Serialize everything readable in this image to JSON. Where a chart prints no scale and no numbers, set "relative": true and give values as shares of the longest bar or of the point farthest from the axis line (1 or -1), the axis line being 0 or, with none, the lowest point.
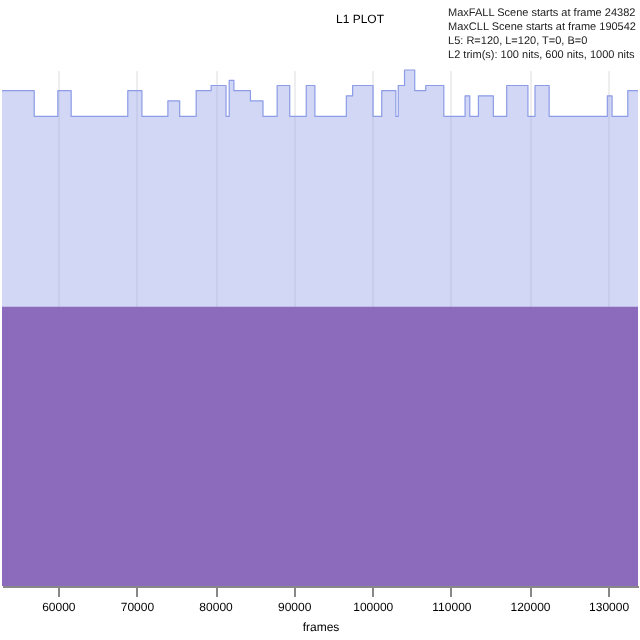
{
  "chart_data": {
    "type": "area",
    "title": "L1 PLOT",
    "xlabel": "frames",
    "relative": true,
    "grid": "x",
    "annotations": [
      "MaxFALL Scene starts at frame 24382",
      "MaxCLL Scene starts at frame 190542",
      "L5: R=120, L=120, T=0, B=0",
      "L2 trim(s): 100 nits, 600 nits, 1000 nits"
    ],
    "xlim": [
      52900,
      133800
    ],
    "xticks": [
      60000,
      70000,
      80000,
      90000,
      100000,
      110000,
      120000,
      130000
    ],
    "series": [
      {
        "color": "#8c9ce6",
        "x": [
          52900,
          57000,
          57000,
          60000,
          60000,
          61700,
          61700,
          68900,
          68900,
          70700,
          70700,
          74000,
          74000,
          75500,
          75500,
          77600,
          77600,
          79500,
          79500,
          81400,
          81400,
          81800,
          81800,
          82400,
          82400,
          84500,
          84500,
          86100,
          86100,
          87900,
          87900,
          89500,
          89500,
          91600,
          91600,
          92700,
          92700,
          96700,
          96700,
          97500,
          97500,
          100100,
          100100,
          101200,
          101200,
          103000,
          103000,
          103300,
          103300,
          104100,
          104100,
          105400,
          105400,
          106800,
          106800,
          109100,
          109100,
          111800,
          111800,
          112400,
          112400,
          113500,
          113500,
          115400,
          115400,
          117100,
          117100,
          119800,
          119800,
          120700,
          120700,
          122500,
          122500,
          129900,
          129900,
          130500,
          130500,
          132500,
          132500,
          133800
        ],
        "values": [
          0.96,
          0.96,
          0.91,
          0.91,
          0.96,
          0.96,
          0.91,
          0.91,
          0.96,
          0.96,
          0.91,
          0.91,
          0.94,
          0.94,
          0.91,
          0.91,
          0.96,
          0.96,
          0.97,
          0.97,
          0.91,
          0.91,
          0.98,
          0.98,
          0.96,
          0.96,
          0.94,
          0.94,
          0.91,
          0.91,
          0.97,
          0.97,
          0.91,
          0.91,
          0.97,
          0.97,
          0.91,
          0.91,
          0.95,
          0.95,
          0.97,
          0.97,
          0.91,
          0.91,
          0.96,
          0.96,
          0.91,
          0.91,
          0.97,
          0.97,
          1,
          1,
          0.96,
          0.96,
          0.97,
          0.97,
          0.91,
          0.91,
          0.95,
          0.95,
          0.91,
          0.91,
          0.95,
          0.95,
          0.91,
          0.91,
          0.97,
          0.97,
          0.91,
          0.91,
          0.97,
          0.97,
          0.91,
          0.91,
          0.95,
          0.95,
          0.91,
          0.91,
          0.96,
          0.96
        ]
      },
      {
        "color": "#8c6bbd",
        "x": [
          52900,
          133800
        ],
        "values": [
          0.54,
          0.54
        ]
      }
    ]
  }
}
